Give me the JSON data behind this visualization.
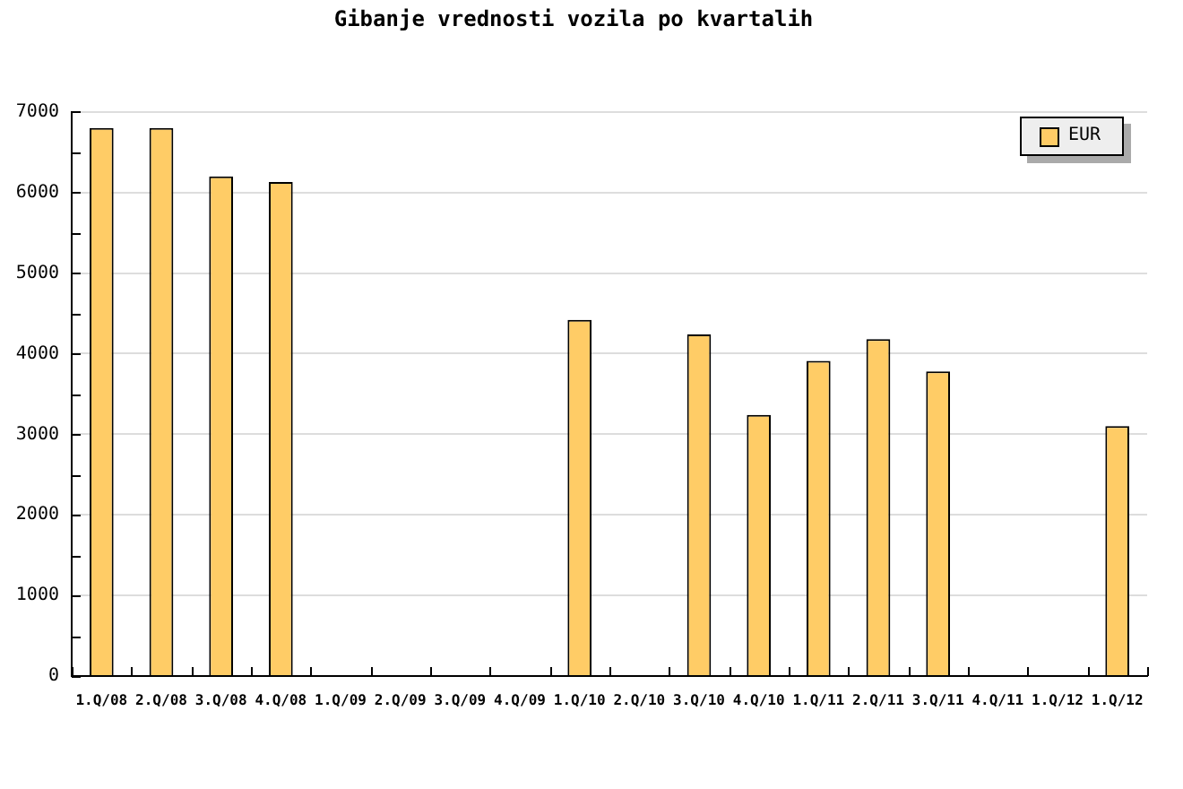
{
  "chart_data": {
    "type": "bar",
    "title": "Gibanje vrednosti vozila po kvartalih",
    "categories": [
      "1.Q/08",
      "2.Q/08",
      "3.Q/08",
      "4.Q/08",
      "1.Q/09",
      "2.Q/09",
      "3.Q/09",
      "4.Q/09",
      "1.Q/10",
      "2.Q/10",
      "3.Q/10",
      "4.Q/10",
      "1.Q/11",
      "2.Q/11",
      "3.Q/11",
      "4.Q/11",
      "1.Q/12",
      "1.Q/12"
    ],
    "series": [
      {
        "name": "EUR",
        "color": "#ffcc66",
        "values": [
          6800,
          6800,
          6200,
          6130,
          null,
          null,
          null,
          null,
          4420,
          null,
          4240,
          3240,
          3910,
          4180,
          3780,
          null,
          null,
          3100
        ]
      }
    ],
    "ylim": [
      0,
      7000
    ],
    "yticks": [
      0,
      {
        "value": 500,
        "label": null
      },
      1000,
      {
        "value": 1500,
        "label": null
      },
      2000,
      {
        "value": 2500,
        "label": null
      },
      3000,
      {
        "value": 3500,
        "label": null
      },
      4000,
      {
        "value": 4500,
        "label": null
      },
      5000,
      {
        "value": 5500,
        "label": null
      },
      6000,
      {
        "value": 6500,
        "label": null
      },
      7000
    ],
    "grid": "y",
    "legend": "top right"
  }
}
